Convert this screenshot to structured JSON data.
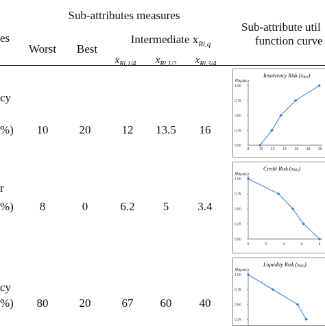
{
  "header": {
    "col_partial_left": "es",
    "group_measures": "Sub-attributes measures",
    "worst": "Worst",
    "best": "Best",
    "intermediate_prefix": "Intermediate x",
    "intermediate_sub": "Ri,q",
    "q14_x": "x",
    "q14_sub": "Ri,1/4",
    "q12_x": "x",
    "q12_sub": "Ri,1/2",
    "q34_x": "x",
    "q34_sub": "Ri,3/4",
    "curve_line1": "Sub-attribute util",
    "curve_line2": "function curve"
  },
  "rows": [
    {
      "label_top": "cy",
      "label_bottom": "%)",
      "worst": "10",
      "best": "20",
      "q14": "12",
      "q12": "13.5",
      "q34": "16"
    },
    {
      "label_top": "",
      "label_bottom": "%)",
      "worst": "8",
      "best": "0",
      "q14": "6.2",
      "q12": "5",
      "q34": "3.4"
    },
    {
      "label_top": "cy",
      "label_bottom": "%)",
      "worst": "80",
      "best": "20",
      "q14": "67",
      "q12": "60",
      "q34": "40"
    }
  ],
  "row_label_mark": "r",
  "charts": [
    {
      "title": "Insolvency Risk (x",
      "title_sub": "RI1",
      "ylabel": "u",
      "yticks": [
        "1,00",
        "0,75",
        "0,50",
        "0,25",
        "0,00"
      ],
      "xticks": [
        "8",
        "10",
        "12",
        "14",
        "16",
        "18",
        "20"
      ],
      "xrange": [
        8,
        20.5
      ],
      "points": [
        [
          10,
          0.0
        ],
        [
          12,
          0.25
        ],
        [
          13.5,
          0.5
        ],
        [
          16,
          0.75
        ],
        [
          20,
          1.0
        ]
      ]
    },
    {
      "title": "Credit Risk (x",
      "title_sub": "RI2",
      "ylabel": "u",
      "yticks": [
        "1,00",
        "0,75",
        "0,50",
        "0,25",
        "0,00"
      ],
      "xticks": [
        "0",
        "2",
        "4",
        "6",
        "8"
      ],
      "xrange": [
        0,
        8.3
      ],
      "points": [
        [
          0,
          1.0
        ],
        [
          3.4,
          0.75
        ],
        [
          5,
          0.5
        ],
        [
          6.2,
          0.25
        ],
        [
          8,
          0.0
        ]
      ]
    },
    {
      "title": "Liquidity Risk (x",
      "title_sub": "RI3",
      "ylabel": "u",
      "yticks": [
        "1,00",
        "0,75",
        "0,50",
        "0,25"
      ],
      "xticks": [],
      "xrange": [
        20,
        80
      ],
      "points": [
        [
          20,
          1.0
        ],
        [
          40,
          0.75
        ],
        [
          60,
          0.5
        ],
        [
          67,
          0.25
        ]
      ]
    }
  ],
  "colors": {
    "line": "#4a90d9",
    "marker": "#3a7bc8",
    "axis": "#555555"
  }
}
